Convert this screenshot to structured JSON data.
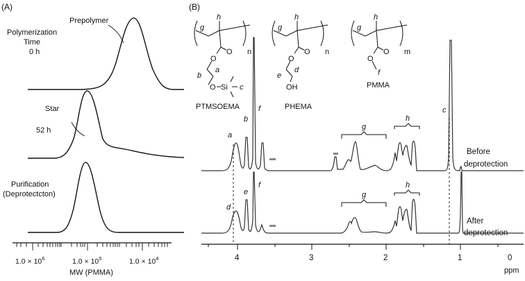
{
  "panelA": {
    "label": "(A)",
    "axis_label": "MW (PMMA)",
    "tick_labels": [
      "1.0 × 10",
      "1.0 × 10",
      "1.0 × 10"
    ],
    "tick_exponents": [
      "6",
      "5",
      "4"
    ],
    "annotations": {
      "prepolymer": "Prepolymer",
      "polymerization": "Polymerization",
      "time": "Time",
      "t0": "0 h",
      "star": "Star",
      "t52": "52 h",
      "purification": "Purification",
      "deprotection": "(Deprotectcton)"
    }
  },
  "panelB": {
    "label": "(B)",
    "x_unit": "ppm",
    "x_ticks": [
      "4",
      "3",
      "2",
      "1",
      "0"
    ],
    "structures": {
      "ptmsoema": {
        "name": "PTMSOEMA",
        "labels": [
          "g",
          "h",
          "n",
          "O",
          "O",
          "a",
          "b",
          "O",
          "Si",
          "c"
        ]
      },
      "phema": {
        "name": "PHEMA",
        "labels": [
          "g",
          "h",
          "n",
          "O",
          "O",
          "d",
          "e",
          "OH"
        ]
      },
      "pmma": {
        "name": "PMMA",
        "labels": [
          "g",
          "h",
          "m",
          "O",
          "O",
          "f"
        ]
      }
    },
    "spectra": {
      "before": [
        "Before",
        "deprotection"
      ],
      "after": [
        "After",
        "deprotection"
      ]
    },
    "peak_labels": {
      "a": "a",
      "b": "b",
      "f1": "f",
      "c": "c",
      "g1": "g",
      "h1": "h",
      "d": "d",
      "e": "e",
      "f2": "f",
      "g2": "g",
      "h2": "h"
    }
  }
}
